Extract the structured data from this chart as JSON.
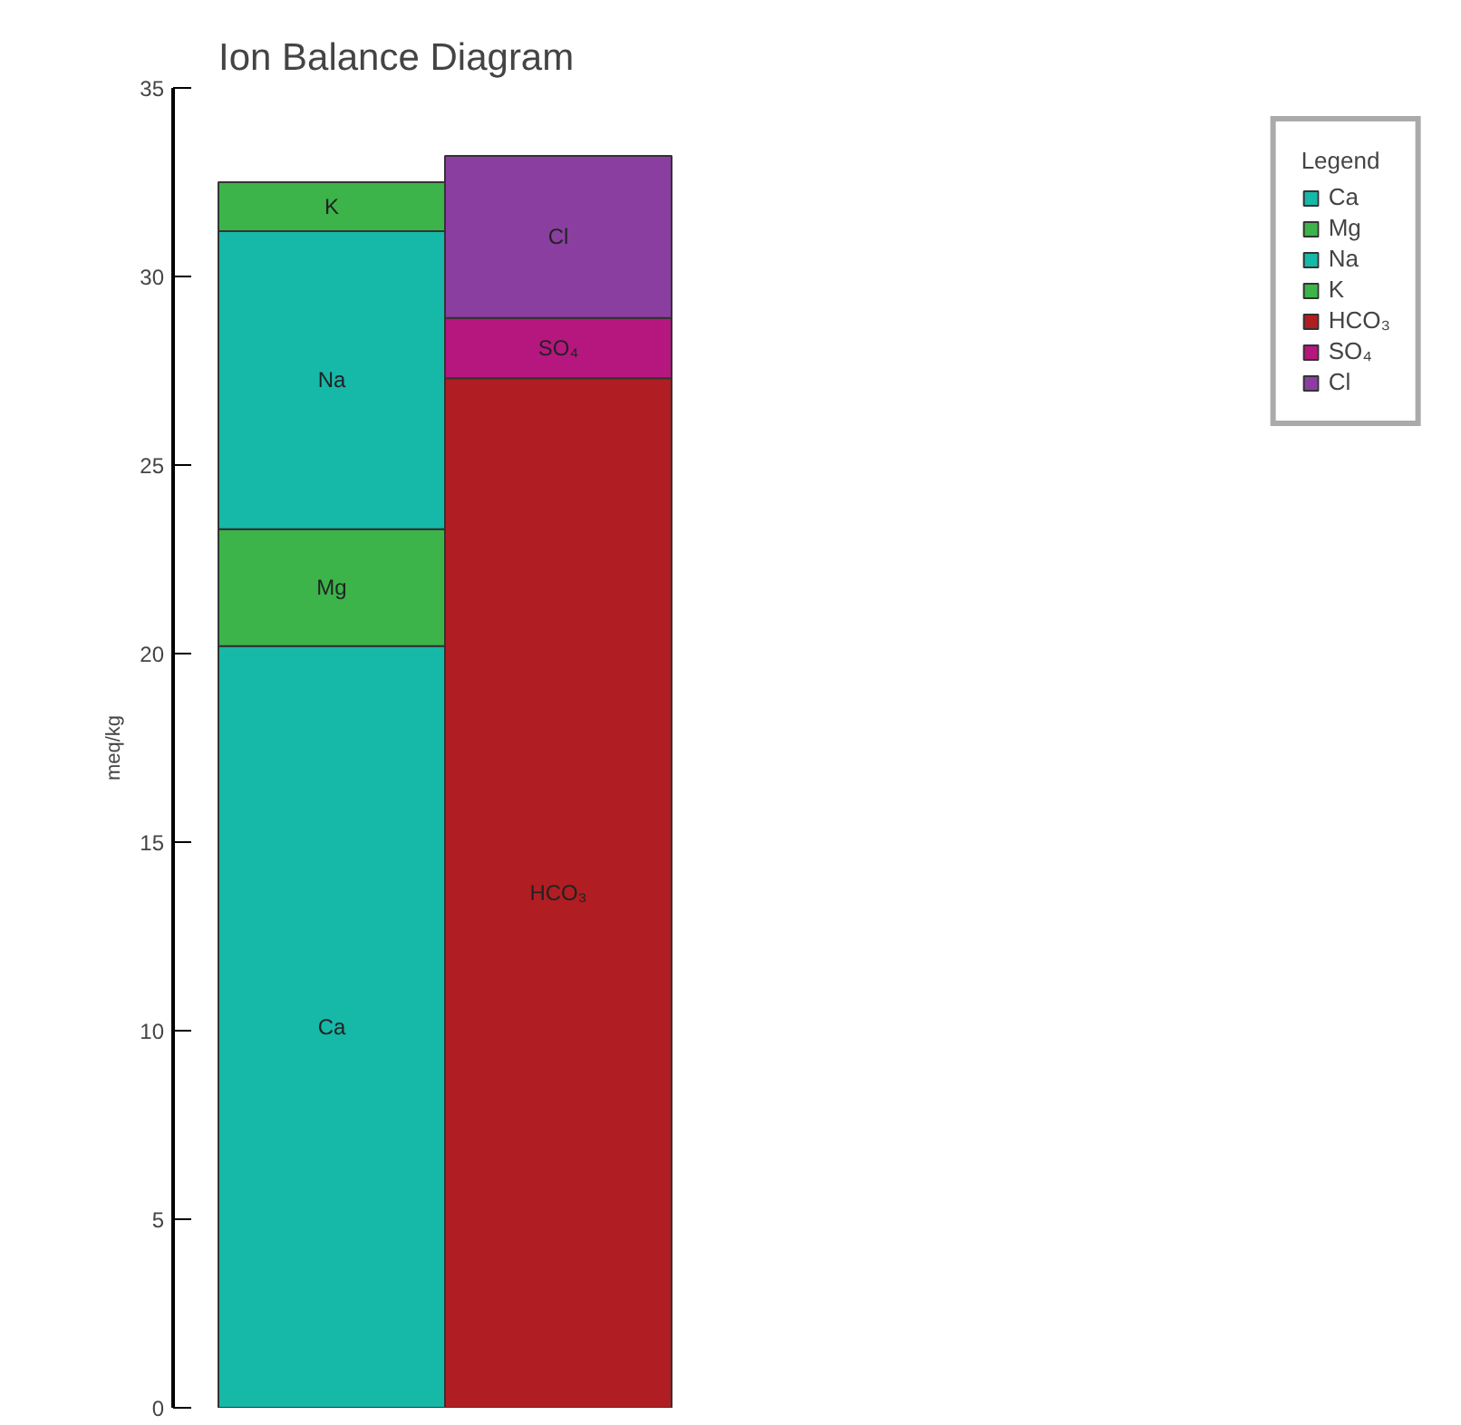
{
  "chart_data": {
    "type": "bar",
    "stacked": true,
    "title": "Ion Balance Diagram",
    "ylabel": "meq/kg",
    "legend_title": "Legend",
    "legend": "top right",
    "grid": false,
    "categories": [
      null,
      null
    ],
    "series": [
      {
        "name": "Ca",
        "color": "#16b8a8",
        "values": [
          20.2,
          null
        ]
      },
      {
        "name": "Mg",
        "color": "#3cb44a",
        "values": [
          3.1,
          null
        ]
      },
      {
        "name": "Na",
        "color": "#16b8a8",
        "values": [
          7.9,
          null
        ]
      },
      {
        "name": "K",
        "color": "#3cb44a",
        "values": [
          1.3,
          null
        ]
      },
      {
        "name": "HCO₃",
        "color": "#b01e23",
        "values": [
          null,
          27.3
        ]
      },
      {
        "name": "SO₄",
        "color": "#b5177f",
        "values": [
          null,
          1.6
        ]
      },
      {
        "name": "Cl",
        "color": "#8a3fa0",
        "values": [
          null,
          4.3
        ]
      }
    ],
    "ylim": [
      0,
      35
    ],
    "yticks": [
      0,
      5,
      10,
      15,
      20,
      25,
      30,
      35
    ]
  }
}
